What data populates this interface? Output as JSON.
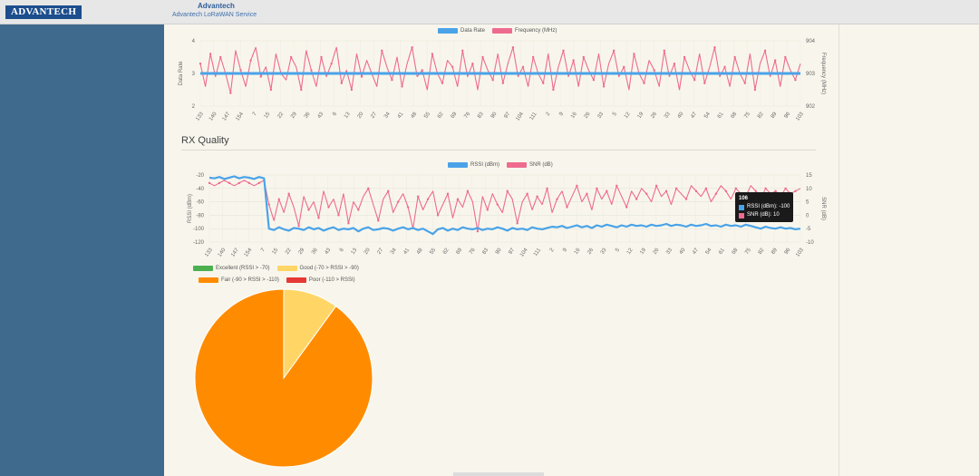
{
  "header": {
    "logo_text": "ADVANTECH",
    "brand": "Advantech",
    "service": "Advantech LoRaWAN Service"
  },
  "section": {
    "title": "RX Quality"
  },
  "colors": {
    "blue": "#4aa3e8",
    "pink": "#ee6b8f",
    "green": "#4caf50",
    "yellow": "#ffd666",
    "orange": "#ff8c00",
    "red": "#e53935"
  },
  "tick_labels": [
    "133",
    "140",
    "147",
    "154",
    "7",
    "15",
    "22",
    "29",
    "36",
    "43",
    "6",
    "13",
    "20",
    "27",
    "34",
    "41",
    "48",
    "55",
    "62",
    "69",
    "76",
    "83",
    "90",
    "97",
    "104",
    "111",
    "2",
    "9",
    "16",
    "26",
    "33",
    "5",
    "12",
    "19",
    "26",
    "33",
    "40",
    "47",
    "54",
    "61",
    "68",
    "75",
    "82",
    "89",
    "96",
    "103"
  ],
  "chart_data": [
    {
      "type": "line",
      "legend": [
        "Data Rate",
        "Frequency (MHz)"
      ],
      "ylabel_left": "Data Rate",
      "ylabel_right": "Frequency (MHz)",
      "y_left_ticks": [
        "4",
        "3",
        "2"
      ],
      "y_right_ticks": [
        "904",
        "903",
        "902"
      ],
      "ylim_left": [
        2,
        4
      ],
      "ylim_right": [
        902,
        904
      ],
      "series": [
        {
          "name": "Data Rate",
          "axis": "left",
          "constant": 3
        },
        {
          "name": "Frequency (MHz)",
          "axis": "right",
          "values": [
            903.3,
            902.6,
            903.6,
            902.9,
            903.5,
            903.0,
            902.4,
            903.7,
            903.1,
            902.6,
            903.4,
            903.8,
            902.9,
            903.2,
            902.5,
            903.6,
            903.0,
            902.8,
            903.5,
            903.2,
            902.5,
            903.7,
            903.1,
            902.6,
            903.5,
            902.9,
            903.3,
            903.8,
            902.7,
            903.1,
            902.5,
            903.6,
            902.9,
            903.4,
            903.0,
            902.6,
            903.7,
            903.2,
            902.8,
            903.5,
            902.6,
            903.3,
            903.8,
            902.9,
            903.1,
            902.5,
            903.6,
            903.0,
            902.7,
            903.4,
            903.2,
            902.6,
            903.7,
            902.9,
            903.3,
            902.5,
            903.5,
            903.1,
            902.8,
            903.6,
            902.7,
            903.3,
            903.8,
            902.9,
            903.2,
            902.6,
            903.5,
            903.0,
            902.7,
            903.6,
            902.5,
            903.2,
            903.7,
            902.9,
            903.4,
            902.6,
            903.5,
            903.1,
            902.8,
            903.6,
            902.6,
            903.3,
            903.7,
            902.9,
            903.2,
            902.5,
            903.6,
            903.0,
            902.7,
            903.4,
            903.1,
            902.6,
            903.7,
            902.9,
            903.3,
            902.5,
            903.5,
            903.1,
            902.8,
            903.6,
            902.7,
            903.2,
            903.8,
            902.9,
            903.2,
            902.6,
            903.5,
            903.0,
            902.7,
            903.6,
            902.5,
            903.3,
            903.7,
            902.9,
            903.4,
            902.6,
            903.5,
            903.1,
            902.8,
            903.3
          ]
        }
      ]
    },
    {
      "type": "line",
      "legend": [
        "RSSI (dBm)",
        "SNR (dB)"
      ],
      "ylabel_left": "RSSI (dBm)",
      "ylabel_right": "SNR (dB)",
      "y_left_ticks": [
        "-20",
        "-40",
        "-60",
        "-80",
        "-100",
        "-120"
      ],
      "y_right_ticks": [
        "15",
        "10",
        "5",
        "0",
        "-5",
        "-10"
      ],
      "ylim_left": [
        -120,
        -20
      ],
      "ylim_right": [
        -10,
        15
      ],
      "series": [
        {
          "name": "RSSI (dBm)",
          "axis": "left",
          "values": [
            -24,
            -25,
            -23,
            -26,
            -24,
            -22,
            -25,
            -23,
            -24,
            -26,
            -23,
            -25,
            -100,
            -102,
            -98,
            -101,
            -103,
            -99,
            -100,
            -102,
            -98,
            -101,
            -99,
            -103,
            -100,
            -98,
            -102,
            -100,
            -101,
            -99,
            -104,
            -100,
            -98,
            -102,
            -101,
            -99,
            -100,
            -103,
            -100,
            -98,
            -101,
            -99,
            -102,
            -100,
            -104,
            -108,
            -101,
            -99,
            -103,
            -100,
            -102,
            -98,
            -100,
            -101,
            -99,
            -102,
            -100,
            -101,
            -98,
            -100,
            -103,
            -99,
            -101,
            -100,
            -102,
            -98,
            -100,
            -101,
            -99,
            -97,
            -98,
            -96,
            -99,
            -97,
            -95,
            -98,
            -96,
            -99,
            -95,
            -97,
            -94,
            -96,
            -98,
            -95,
            -97,
            -94,
            -96,
            -95,
            -97,
            -94,
            -96,
            -95,
            -93,
            -96,
            -94,
            -95,
            -97,
            -94,
            -96,
            -95,
            -93,
            -96,
            -95,
            -97,
            -94,
            -96,
            -95,
            -97,
            -94,
            -96,
            -98,
            -100,
            -97,
            -99,
            -100,
            -98,
            -100,
            -99,
            -101,
            -100
          ]
        },
        {
          "name": "SNR (dB)",
          "axis": "right",
          "values": [
            12,
            11,
            12,
            13,
            12,
            11,
            12,
            13,
            12,
            11,
            12,
            13,
            4,
            -2,
            6,
            1,
            8,
            3,
            -4,
            7,
            2,
            5,
            -1,
            9,
            3,
            6,
            0,
            8,
            -3,
            5,
            2,
            7,
            10,
            4,
            -2,
            6,
            9,
            1,
            5,
            8,
            3,
            -5,
            7,
            2,
            6,
            9,
            0,
            4,
            8,
            -1,
            6,
            3,
            9,
            5,
            -6,
            7,
            2,
            8,
            4,
            1,
            9,
            6,
            -3,
            5,
            8,
            2,
            7,
            4,
            10,
            1,
            6,
            9,
            3,
            7,
            11,
            5,
            8,
            2,
            10,
            6,
            9,
            4,
            11,
            7,
            3,
            9,
            6,
            10,
            8,
            5,
            11,
            7,
            9,
            4,
            10,
            8,
            6,
            11,
            9,
            7,
            10,
            5,
            8,
            11,
            9,
            6,
            10,
            8,
            7,
            11,
            9,
            6,
            10,
            8,
            9,
            7,
            10,
            8,
            9,
            10
          ]
        }
      ],
      "tooltip": {
        "title": "106",
        "lines": [
          "RSSI (dBm): -100",
          "SNR (dB): 10"
        ]
      }
    },
    {
      "type": "pie",
      "legend": [
        "Excellent (RSSI > -70)",
        "Good (-70 > RSSI > -90)",
        "Fair (-90 > RSSI > -110)",
        "Poor (-110 > RSSI)"
      ],
      "slices": [
        {
          "name": "Excellent (RSSI > -70)",
          "value": 0,
          "color": "#4caf50"
        },
        {
          "name": "Good (-70 > RSSI > -90)",
          "value": 10,
          "color": "#ffd666"
        },
        {
          "name": "Fair (-90 > RSSI > -110)",
          "value": 90,
          "color": "#ff8c00"
        },
        {
          "name": "Poor (-110 > RSSI)",
          "value": 0,
          "color": "#e53935"
        }
      ]
    }
  ]
}
